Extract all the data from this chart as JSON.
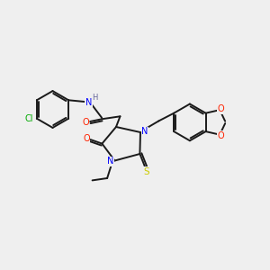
{
  "background_color": "#efefef",
  "bond_color": "#1a1a1a",
  "atom_colors": {
    "N": "#0000ff",
    "O": "#ff2200",
    "S": "#cccc00",
    "Cl": "#00aa00",
    "H": "#666699",
    "C": "#1a1a1a"
  },
  "figsize": [
    3.0,
    3.0
  ],
  "dpi": 100
}
